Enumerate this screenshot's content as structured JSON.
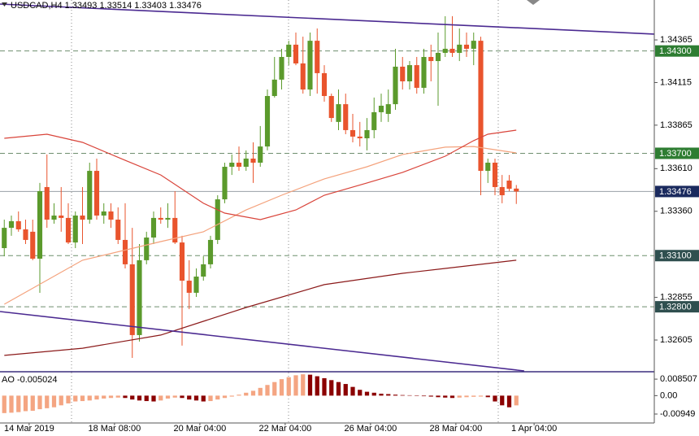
{
  "chart_data": {
    "type": "candlestick",
    "title": "USDCAD,H4  1.33493 1.33514 1.33403 1.33476",
    "up_color": "#5b9a2c",
    "down_color": "#e9542d",
    "open": [
      1.33144,
      1.33263,
      1.33302,
      1.33254,
      1.3324,
      1.33082,
      1.33502,
      1.33311,
      1.33335,
      1.33321,
      1.33177,
      1.33335,
      1.33311,
      1.33597,
      1.33335,
      1.33359,
      1.33311,
      1.33192,
      1.33049,
      1.32634,
      1.33073,
      1.33206,
      1.33321,
      1.33311,
      1.33321,
      1.33177,
      1.32953,
      1.32882,
      1.32977,
      1.33049,
      1.33192,
      1.3343,
      1.33621,
      1.33645,
      1.33621,
      1.33669,
      1.33645,
      1.3374,
      1.34036,
      1.34132,
      1.34265,
      1.34337,
      1.34227,
      1.34074,
      1.3436,
      1.3417,
      1.34036,
      1.33884,
      1.33988,
      1.33836,
      1.33798,
      1.33788,
      1.33836,
      1.33941,
      1.33931,
      1.33988,
      1.34208,
      1.34122,
      1.34217,
      1.34084,
      1.34265,
      1.34241,
      1.34289,
      1.34313,
      1.34289,
      1.34337,
      1.34313,
      1.3436,
      1.33597,
      1.33645,
      1.33502,
      1.3354,
      1.33493
    ],
    "high": [
      1.33311,
      1.33335,
      1.33359,
      1.33311,
      1.33311,
      1.33526,
      1.33693,
      1.33407,
      1.33502,
      1.33407,
      1.33359,
      1.33502,
      1.33645,
      1.33669,
      1.33407,
      1.33407,
      1.33383,
      1.33407,
      1.33263,
      1.33168,
      1.3324,
      1.33359,
      1.33383,
      1.33407,
      1.33478,
      1.33216,
      1.33073,
      1.33025,
      1.33096,
      1.33216,
      1.33454,
      1.33645,
      1.33693,
      1.3374,
      1.33717,
      1.33764,
      1.3386,
      1.34074,
      1.34265,
      1.34313,
      1.3436,
      1.34408,
      1.34384,
      1.34408,
      1.34432,
      1.34217,
      1.3405,
      1.34074,
      1.3405,
      1.33931,
      1.33884,
      1.33907,
      1.34027,
      1.3405,
      1.34074,
      1.34313,
      1.34265,
      1.34241,
      1.34265,
      1.34313,
      1.34337,
      1.34408,
      1.34504,
      1.34504,
      1.34432,
      1.34408,
      1.34408,
      1.34384,
      1.33669,
      1.33669,
      1.33573,
      1.33573,
      1.33514
    ],
    "low": [
      1.33096,
      1.33216,
      1.3324,
      1.33168,
      1.33073,
      1.32882,
      1.33263,
      1.33287,
      1.3324,
      1.33168,
      1.33144,
      1.33168,
      1.33287,
      1.33311,
      1.33287,
      1.33263,
      1.33168,
      1.33025,
      1.325,
      1.32596,
      1.33049,
      1.33168,
      1.33287,
      1.33263,
      1.33168,
      1.32572,
      1.32786,
      1.32858,
      1.32953,
      1.33025,
      1.33168,
      1.33407,
      1.33573,
      1.33597,
      1.33597,
      1.33526,
      1.33621,
      1.33717,
      1.34027,
      1.34074,
      1.34217,
      1.34217,
      1.3405,
      1.34036,
      1.3405,
      1.34003,
      1.33884,
      1.33836,
      1.33812,
      1.33764,
      1.3374,
      1.33717,
      1.33788,
      1.33884,
      1.33884,
      1.33955,
      1.34074,
      1.34074,
      1.3405,
      1.3405,
      1.34122,
      1.33979,
      1.34265,
      1.34265,
      1.34241,
      1.34265,
      1.34217,
      1.33454,
      1.33526,
      1.33454,
      1.33407,
      1.33478,
      1.33403
    ],
    "close": [
      1.33263,
      1.33302,
      1.33254,
      1.33192,
      1.33082,
      1.33478,
      1.33311,
      1.33335,
      1.33321,
      1.33177,
      1.33335,
      1.33311,
      1.33597,
      1.33335,
      1.33359,
      1.33311,
      1.33192,
      1.33049,
      1.32634,
      1.33073,
      1.33206,
      1.33321,
      1.33311,
      1.33321,
      1.33177,
      1.32953,
      1.32882,
      1.32977,
      1.33049,
      1.33192,
      1.3343,
      1.33621,
      1.33645,
      1.33621,
      1.33669,
      1.33645,
      1.3374,
      1.34036,
      1.34132,
      1.34265,
      1.34337,
      1.34227,
      1.34074,
      1.3436,
      1.3417,
      1.34036,
      1.33907,
      1.33988,
      1.33836,
      1.33798,
      1.33788,
      1.33836,
      1.33941,
      1.33979,
      1.33988,
      1.34208,
      1.34122,
      1.34217,
      1.34084,
      1.34265,
      1.34241,
      1.34289,
      1.34313,
      1.34289,
      1.34337,
      1.34313,
      1.3436,
      1.33597,
      1.33645,
      1.33502,
      1.33454,
      1.33492,
      1.33476
    ],
    "xlim": [
      -0.6,
      91.4
    ],
    "xticks": [
      {
        "value": 3.5,
        "label": "14 Mar 2019"
      },
      {
        "value": 15.5,
        "label": "18 Mar 08:00"
      },
      {
        "value": 27.5,
        "label": "20 Mar 04:00"
      },
      {
        "value": 39.5,
        "label": "22 Mar 04:00"
      },
      {
        "value": 51.5,
        "label": "26 Mar 04:00"
      },
      {
        "value": 63.5,
        "label": "28 Mar 04:00"
      },
      {
        "value": 74.5,
        "label": "1 Apr 04:00"
      }
    ],
    "ylim": [
      1.32419,
      1.34599
    ],
    "yticks": [
      1.34365,
      1.34115,
      1.33865,
      {
        "value": 1.3361,
        "label": "1.33610"
      },
      {
        "value": 1.3336,
        "label": "1.33360"
      },
      1.32855,
      1.32605
    ],
    "lines": [
      {
        "color": "#f4a27c",
        "x": [
          0,
          11,
          22,
          28,
          34,
          39,
          45,
          51,
          56,
          62,
          66,
          72
        ],
        "values": [
          1.32815,
          1.33073,
          1.33182,
          1.3324,
          1.33368,
          1.33454,
          1.3355,
          1.33621,
          1.33693,
          1.33736,
          1.3374,
          1.33702
        ]
      },
      {
        "color": "#d9443a",
        "x": [
          0,
          6,
          11,
          17,
          22,
          28,
          31,
          36,
          41,
          45,
          51,
          56,
          62,
          66,
          68,
          72
        ],
        "values": [
          1.33788,
          1.33812,
          1.33764,
          1.33659,
          1.33573,
          1.33407,
          1.33349,
          1.33311,
          1.33368,
          1.33454,
          1.33526,
          1.33588,
          1.33683,
          1.33774,
          1.33812,
          1.33836
        ]
      },
      {
        "color": "#8b1a1a",
        "x": [
          0,
          11,
          22,
          34,
          45,
          56,
          62,
          72
        ],
        "values": [
          1.32515,
          1.32557,
          1.32634,
          1.32796,
          1.3293,
          1.32996,
          1.33025,
          1.33073
        ]
      },
      {
        "color": "#4b2a91",
        "x": [
          -0.6,
          91.4
        ],
        "values": [
          1.34575,
          1.34399
        ]
      },
      {
        "color": "#4b2a91",
        "x": [
          -0.6,
          73.1
        ],
        "values": [
          1.32772,
          1.32424
        ]
      }
    ],
    "levels": [
      {
        "value": 1.343,
        "label": "1.34300",
        "color": "#2e7d32",
        "dashed": true
      },
      {
        "value": 1.337,
        "label": "1.33700",
        "color": "#2e7d32",
        "dashed": true
      },
      {
        "value": 1.33476,
        "label": "1.33476",
        "color": "#1a2a5e",
        "dashed": false
      },
      {
        "value": 1.331,
        "label": "1.33100",
        "color": "#2f4f4f",
        "dashed": true
      },
      {
        "value": 1.328,
        "label": "1.32800",
        "color": "#2f4f4f",
        "dashed": true
      }
    ],
    "indicator": {
      "type": "bar",
      "title": "AO -0.005024",
      "up_color": "#f4a582",
      "down_color": "#8b0000",
      "ylim": [
        -0.0141,
        0.0119
      ],
      "yticks": [
        0.008507,
        {
          "value": 0,
          "label": "0.00"
        },
        -0.00949
      ],
      "values": [
        -0.009,
        -0.0088,
        -0.0085,
        -0.008,
        -0.0078,
        -0.007,
        -0.0065,
        -0.006,
        -0.005,
        -0.004,
        -0.003,
        -0.0028,
        -0.0025,
        -0.002,
        -0.0015,
        -0.0012,
        -0.001,
        -0.0012,
        -0.002,
        -0.0025,
        -0.0028,
        -0.003,
        -0.0025,
        -0.0015,
        -0.001,
        -0.0012,
        -0.002,
        -0.0025,
        -0.003,
        -0.0028,
        -0.002,
        -0.0012,
        -0.0005,
        0.0005,
        0.0015,
        0.0025,
        0.004,
        0.0055,
        0.007,
        0.0085,
        0.0095,
        0.0105,
        0.011,
        0.0108,
        0.01,
        0.009,
        0.008,
        0.007,
        0.006,
        0.0045,
        0.003,
        0.002,
        0.0015,
        0.001,
        0.0008,
        0.0005,
        0.0003,
        0.0002,
        0.0001,
        -0.0003,
        -0.0005,
        -0.0008,
        -0.001,
        -0.0012,
        -0.001,
        -0.0008,
        -0.0006,
        -0.0005,
        -0.0008,
        -0.003,
        -0.005,
        -0.006,
        -0.005024
      ]
    }
  }
}
